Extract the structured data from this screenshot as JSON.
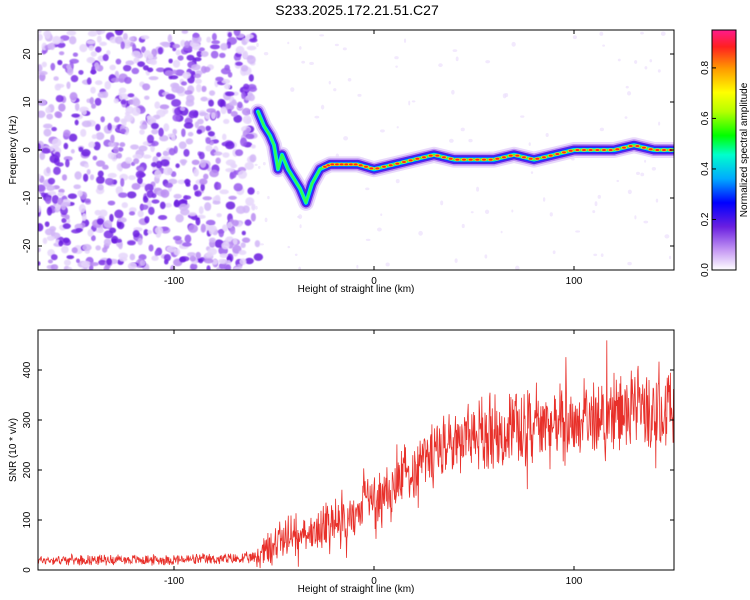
{
  "title": "S233.2025.172.21.51.C27",
  "colors": {
    "snr_line": "#e8302a",
    "ridge": "#e02020",
    "noise": "#8a3ff0"
  },
  "chart_data": [
    {
      "type": "heatmap",
      "xlabel": "Height of straight line (km)",
      "ylabel": "Frequency (Hz)",
      "xlim": [
        -168,
        150
      ],
      "ylim": [
        -25,
        25
      ],
      "xticks": [
        -100,
        0,
        100
      ],
      "yticks": [
        -20,
        -10,
        0,
        10,
        20
      ],
      "grid": false,
      "colorbar": {
        "label": "Normalized spectral amplitude",
        "range": [
          0,
          0.95
        ],
        "ticks": [
          "0.0",
          "0.2",
          "0.4",
          "0.6",
          "0.8"
        ],
        "colormap": "rainbow"
      },
      "noise_region_x": [
        -168,
        -60
      ],
      "ridge": [
        {
          "x": -58,
          "y": 8
        },
        {
          "x": -55,
          "y": 5
        },
        {
          "x": -52,
          "y": 3
        },
        {
          "x": -50,
          "y": 1
        },
        {
          "x": -48,
          "y": -4
        },
        {
          "x": -46,
          "y": -1
        },
        {
          "x": -43,
          "y": -4
        },
        {
          "x": -40,
          "y": -6
        },
        {
          "x": -37,
          "y": -8
        },
        {
          "x": -34,
          "y": -11
        },
        {
          "x": -31,
          "y": -7
        },
        {
          "x": -27,
          "y": -4
        },
        {
          "x": -22,
          "y": -3
        },
        {
          "x": -15,
          "y": -3
        },
        {
          "x": -8,
          "y": -3
        },
        {
          "x": 0,
          "y": -4
        },
        {
          "x": 10,
          "y": -3
        },
        {
          "x": 20,
          "y": -2
        },
        {
          "x": 30,
          "y": -1
        },
        {
          "x": 40,
          "y": -2
        },
        {
          "x": 50,
          "y": -2
        },
        {
          "x": 60,
          "y": -2
        },
        {
          "x": 70,
          "y": -1
        },
        {
          "x": 80,
          "y": -2
        },
        {
          "x": 90,
          "y": -1
        },
        {
          "x": 100,
          "y": 0
        },
        {
          "x": 110,
          "y": 0
        },
        {
          "x": 120,
          "y": 0
        },
        {
          "x": 130,
          "y": 1
        },
        {
          "x": 140,
          "y": 0
        },
        {
          "x": 150,
          "y": 0
        }
      ]
    },
    {
      "type": "line",
      "xlabel": "Height of straight line (km)",
      "ylabel": "SNR (10 * v/v)",
      "xlim": [
        -168,
        150
      ],
      "ylim": [
        0,
        480
      ],
      "xticks": [
        -100,
        0,
        100
      ],
      "yticks": [
        0,
        100,
        200,
        300,
        400
      ],
      "grid": false,
      "series": [
        {
          "points": [
            [
              -168,
              20
            ],
            [
              -150,
              20
            ],
            [
              -130,
              21
            ],
            [
              -110,
              20
            ],
            [
              -90,
              21
            ],
            [
              -70,
              22
            ],
            [
              -60,
              24
            ],
            [
              -55,
              35
            ],
            [
              -50,
              50
            ],
            [
              -45,
              65
            ],
            [
              -40,
              70
            ],
            [
              -35,
              75
            ],
            [
              -30,
              80
            ],
            [
              -25,
              85
            ],
            [
              -20,
              90
            ],
            [
              -15,
              100
            ],
            [
              -10,
              110
            ],
            [
              -5,
              125
            ],
            [
              0,
              140
            ],
            [
              5,
              155
            ],
            [
              10,
              170
            ],
            [
              15,
              185
            ],
            [
              20,
              205
            ],
            [
              25,
              220
            ],
            [
              30,
              235
            ],
            [
              35,
              245
            ],
            [
              40,
              255
            ],
            [
              45,
              265
            ],
            [
              50,
              270
            ],
            [
              60,
              278
            ],
            [
              70,
              282
            ],
            [
              80,
              285
            ],
            [
              90,
              290
            ],
            [
              100,
              295
            ],
            [
              110,
              302
            ],
            [
              120,
              310
            ],
            [
              130,
              318
            ],
            [
              140,
              322
            ],
            [
              150,
              328
            ]
          ],
          "noise_amplitude": [
            [
              -168,
              8
            ],
            [
              -60,
              10
            ],
            [
              -55,
              30
            ],
            [
              -30,
              40
            ],
            [
              0,
              45
            ],
            [
              20,
              55
            ],
            [
              50,
              60
            ],
            [
              100,
              65
            ],
            [
              150,
              70
            ]
          ]
        }
      ]
    }
  ]
}
